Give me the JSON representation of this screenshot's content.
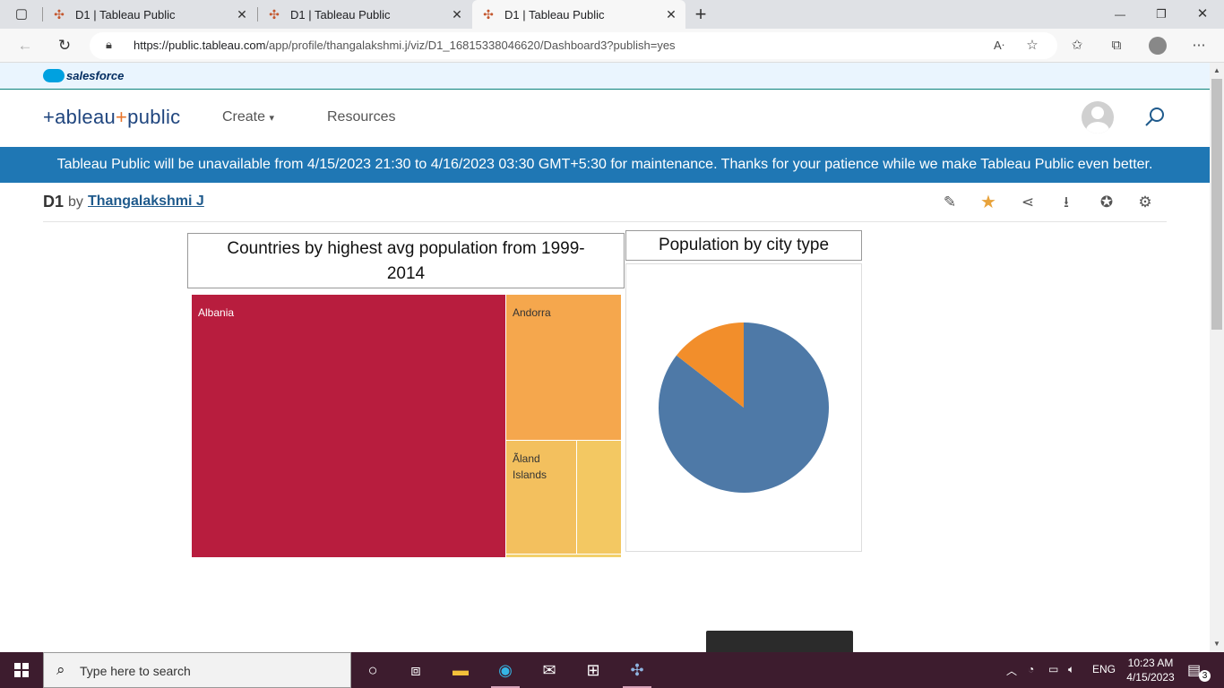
{
  "browser": {
    "tabs": [
      {
        "title": "D1 | Tableau Public",
        "close": "✕"
      },
      {
        "title": "D1 | Tableau Public",
        "close": "✕"
      },
      {
        "title": "D1 | Tableau Public",
        "close": "✕"
      }
    ],
    "new_tab": "+",
    "url_host": "https://public.tableau.com",
    "url_path": "/app/profile/thangalakshmi.j/viz/D1_16815338046620/Dashboard3?publish=yes",
    "window_controls": {
      "minimize": "—",
      "restore": "❐",
      "close": "✕"
    }
  },
  "salesforce_bar": {
    "text": "salesforce"
  },
  "header": {
    "logo": {
      "part1": "+ableau",
      "plus": "+",
      "part2": "public"
    },
    "nav": [
      {
        "label": "Create"
      },
      {
        "label": "Resources"
      }
    ]
  },
  "banner": {
    "text": "Tableau Public will be unavailable from 4/15/2023 21:30 to 4/16/2023 03:30 GMT+5:30 for maintenance. Thanks for your patience while we make Tableau Public even better."
  },
  "viz": {
    "name": "D1",
    "by": "by",
    "author": "Thangalakshmi J"
  },
  "dashboard": {
    "treemap": {
      "title_line1": "Countries by highest avg population from 1999-",
      "title_line2": "2014",
      "cells": [
        {
          "label": "Albania",
          "color": "#b81d3e"
        },
        {
          "label": "Andorra",
          "color": "#f5a74d"
        },
        {
          "label_line1": "Ãland",
          "label_line2": "Islands",
          "color": "#f3c05e"
        },
        {
          "label": "",
          "color": "#f3c862"
        },
        {
          "label": "",
          "color": "#f2d06a"
        }
      ]
    },
    "pie": {
      "title": "Population by city type",
      "slices": [
        {
          "share": 0.855,
          "color": "#4e79a7"
        },
        {
          "share": 0.145,
          "color": "#f28e2b"
        }
      ]
    }
  },
  "taskbar": {
    "search_placeholder": "Type here to search",
    "language": "ENG",
    "time": "10:23 AM",
    "date": "4/15/2023",
    "notification_count": "3"
  }
}
